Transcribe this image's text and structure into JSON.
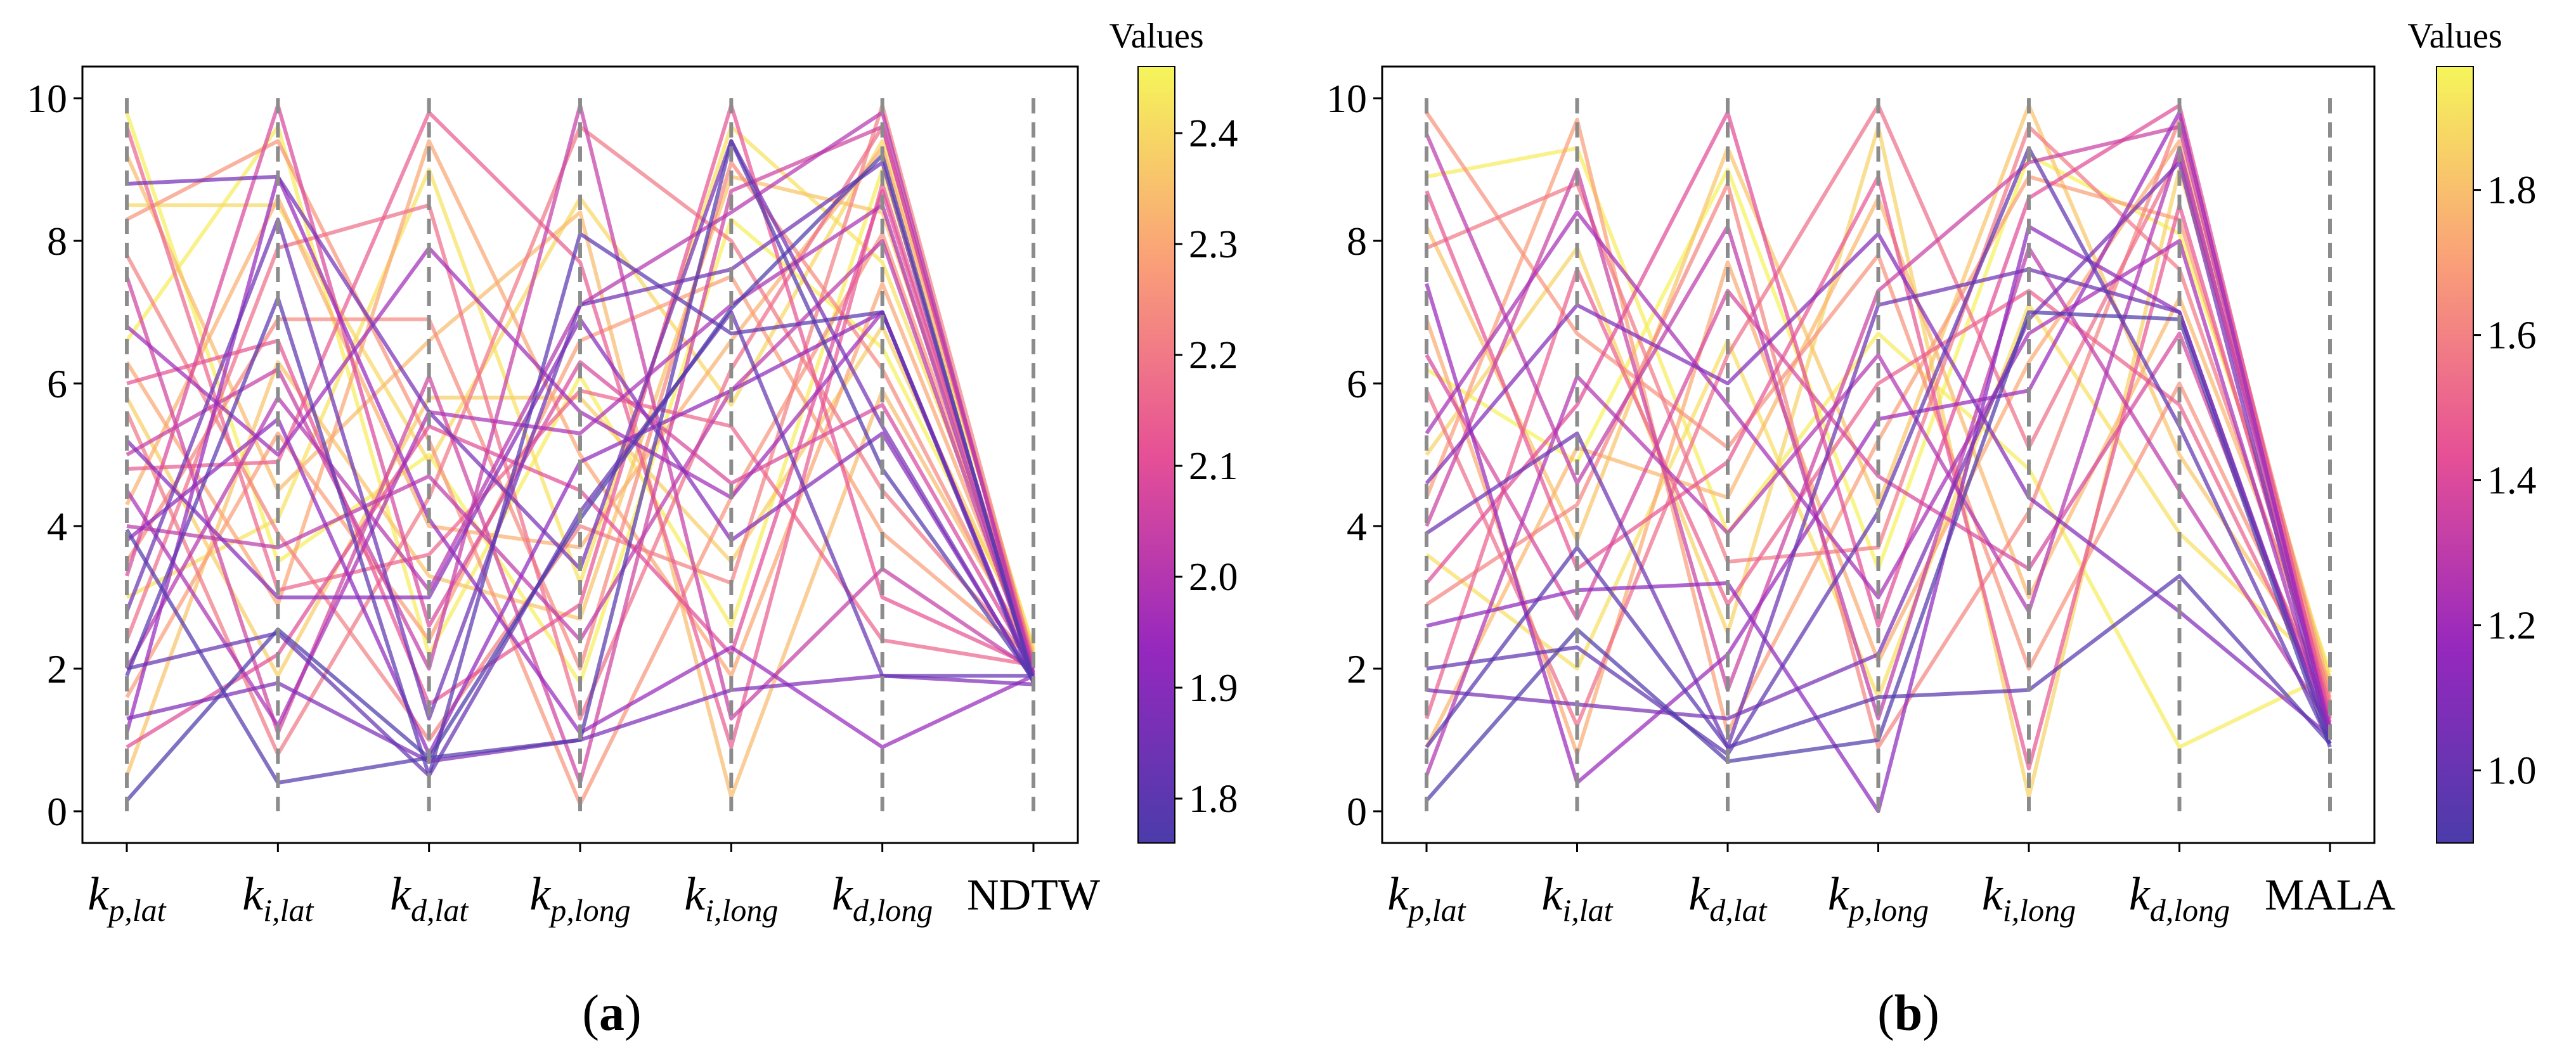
{
  "chart_data": [
    {
      "type": "parallel-coordinates",
      "panel_label": "(a)",
      "axes": [
        {
          "base": "k",
          "sub": "p,lat"
        },
        {
          "base": "k",
          "sub": "i,lat"
        },
        {
          "base": "k",
          "sub": "d,lat"
        },
        {
          "base": "k",
          "sub": "p,long"
        },
        {
          "base": "k",
          "sub": "i,long"
        },
        {
          "base": "k",
          "sub": "d,long"
        },
        {
          "text": "NDTW"
        }
      ],
      "yticks": [
        "0",
        "2",
        "4",
        "6",
        "8",
        "10"
      ],
      "ylim": [
        0,
        10
      ],
      "colorbar": {
        "title": "Values",
        "ticks": [
          "1.8",
          "1.9",
          "2.0",
          "2.1",
          "2.2",
          "2.3",
          "2.4"
        ],
        "range": [
          1.76,
          2.46
        ],
        "colormap": "plasma"
      },
      "series": [
        {
          "values": [
            0.15,
            2.55,
            0.75,
            4.1,
            7.05,
            9.2,
            1.8
          ],
          "color_value": 1.77
        },
        {
          "values": [
            3.95,
            0.4,
            0.75,
            1.0,
            9.4,
            4.8,
            1.85
          ],
          "color_value": 1.78
        },
        {
          "values": [
            1.9,
            7.2,
            0.5,
            8.1,
            6.7,
            7.0,
            1.8
          ],
          "color_value": 1.8
        },
        {
          "values": [
            2.0,
            2.5,
            0.5,
            4.2,
            7.0,
            1.9,
            1.9
          ],
          "color_value": 1.82
        },
        {
          "values": [
            2.8,
            8.3,
            1.3,
            7.1,
            7.6,
            9.1,
            1.85
          ],
          "color_value": 1.84
        },
        {
          "values": [
            8.8,
            8.9,
            5.6,
            3.4,
            9.4,
            5.4,
            1.82
          ],
          "color_value": 1.86
        },
        {
          "values": [
            1.3,
            1.8,
            0.7,
            1.0,
            1.7,
            1.9,
            1.78
          ],
          "color_value": 1.88
        },
        {
          "values": [
            5.2,
            3.0,
            3.0,
            6.9,
            3.8,
            5.3,
            1.85
          ],
          "color_value": 1.9
        },
        {
          "values": [
            3.8,
            5.5,
            0.8,
            4.9,
            5.9,
            7.0,
            1.87
          ],
          "color_value": 1.92
        },
        {
          "values": [
            1.1,
            8.9,
            4.1,
            1.1,
            2.3,
            0.9,
            1.9
          ],
          "color_value": 1.94
        },
        {
          "values": [
            6.8,
            5.0,
            7.9,
            5.6,
            4.4,
            7.0,
            1.85
          ],
          "color_value": 1.96
        },
        {
          "values": [
            4.5,
            1.2,
            5.6,
            5.3,
            7.1,
            8.5,
            1.9
          ],
          "color_value": 1.98
        },
        {
          "values": [
            2.0,
            5.8,
            3.1,
            7.1,
            8.4,
            9.8,
            1.92
          ],
          "color_value": 2.0
        },
        {
          "values": [
            4.0,
            3.7,
            4.7,
            2.4,
            5.9,
            8.0,
            1.95
          ],
          "color_value": 2.02
        },
        {
          "values": [
            5.0,
            6.2,
            2.0,
            9.9,
            1.3,
            3.4,
            1.97
          ],
          "color_value": 2.04
        },
        {
          "values": [
            7.5,
            1.1,
            6.1,
            0.4,
            8.7,
            9.6,
            2.0
          ],
          "color_value": 2.06
        },
        {
          "values": [
            3.3,
            9.9,
            2.6,
            6.3,
            4.6,
            5.7,
            2.0
          ],
          "color_value": 2.08
        },
        {
          "values": [
            0.9,
            2.2,
            5.4,
            4.5,
            2.2,
            8.7,
            2.02
          ],
          "color_value": 2.1
        },
        {
          "values": [
            6.0,
            6.6,
            1.5,
            2.9,
            9.9,
            3.0,
            2.03
          ],
          "color_value": 2.12
        },
        {
          "values": [
            4.8,
            4.9,
            9.8,
            7.7,
            0.9,
            8.8,
            2.05
          ],
          "color_value": 2.14
        },
        {
          "values": [
            9.6,
            3.1,
            3.6,
            5.9,
            5.4,
            2.4,
            2.05
          ],
          "color_value": 2.16
        },
        {
          "values": [
            2.4,
            7.9,
            8.5,
            1.3,
            6.2,
            9.6,
            2.07
          ],
          "color_value": 2.18
        },
        {
          "values": [
            5.6,
            0.8,
            4.4,
            9.6,
            8.0,
            4.5,
            2.08
          ],
          "color_value": 2.2
        },
        {
          "values": [
            7.8,
            3.9,
            1.0,
            4.0,
            3.2,
            9.9,
            2.1
          ],
          "color_value": 2.22
        },
        {
          "values": [
            3.5,
            6.9,
            6.9,
            2.0,
            9.1,
            6.2,
            2.1
          ],
          "color_value": 2.24
        },
        {
          "values": [
            8.3,
            9.4,
            5.2,
            0.1,
            4.4,
            8.1,
            2.12
          ],
          "color_value": 2.26
        },
        {
          "values": [
            1.6,
            5.3,
            2.4,
            6.6,
            7.5,
            3.9,
            2.13
          ],
          "color_value": 2.28
        },
        {
          "values": [
            6.3,
            2.9,
            9.4,
            5.0,
            1.9,
            7.4,
            2.15
          ],
          "color_value": 2.3
        },
        {
          "values": [
            4.3,
            8.6,
            4.0,
            3.7,
            6.6,
            9.3,
            2.17
          ],
          "color_value": 2.32
        },
        {
          "values": [
            9.2,
            4.5,
            6.6,
            8.4,
            0.2,
            5.9,
            2.18
          ],
          "color_value": 2.34
        },
        {
          "values": [
            0.5,
            6.3,
            3.3,
            2.7,
            8.9,
            8.4,
            2.2
          ],
          "color_value": 2.36
        },
        {
          "values": [
            5.8,
            1.9,
            5.8,
            5.8,
            3.5,
            6.8,
            2.22
          ],
          "color_value": 2.38
        },
        {
          "values": [
            8.5,
            8.5,
            4.9,
            8.6,
            5.7,
            9.4,
            2.25
          ],
          "color_value": 2.4
        },
        {
          "values": [
            3.0,
            4.1,
            9.0,
            3.2,
            9.6,
            7.7,
            2.27
          ],
          "color_value": 2.42
        },
        {
          "values": [
            6.6,
            9.6,
            2.2,
            6.1,
            2.6,
            9.0,
            2.3
          ],
          "color_value": 2.44
        },
        {
          "values": [
            9.8,
            3.5,
            5.0,
            1.8,
            8.3,
            6.5,
            2.33
          ],
          "color_value": 2.45
        }
      ]
    },
    {
      "type": "parallel-coordinates",
      "panel_label": "(b)",
      "axes": [
        {
          "base": "k",
          "sub": "p,lat"
        },
        {
          "base": "k",
          "sub": "i,lat"
        },
        {
          "base": "k",
          "sub": "d,lat"
        },
        {
          "base": "k",
          "sub": "p,long"
        },
        {
          "base": "k",
          "sub": "i,long"
        },
        {
          "base": "k",
          "sub": "d,long"
        },
        {
          "text": "MALA"
        }
      ],
      "yticks": [
        "0",
        "2",
        "4",
        "6",
        "8",
        "10"
      ],
      "ylim": [
        0,
        10
      ],
      "colorbar": {
        "title": "Values",
        "ticks": [
          "1.0",
          "1.2",
          "1.4",
          "1.6",
          "1.8"
        ],
        "range": [
          0.9,
          1.97
        ],
        "colormap": "plasma"
      },
      "series": [
        {
          "values": [
            0.15,
            2.55,
            0.7,
            1.0,
            7.0,
            6.9,
            0.9
          ],
          "color_value": 0.92
        },
        {
          "values": [
            0.9,
            3.7,
            0.9,
            1.6,
            1.7,
            3.3,
            0.95
          ],
          "color_value": 0.95
        },
        {
          "values": [
            2.0,
            2.3,
            0.8,
            4.2,
            9.3,
            5.4,
            0.95
          ],
          "color_value": 0.98
        },
        {
          "values": [
            3.9,
            5.3,
            0.9,
            7.1,
            7.6,
            7.0,
            1.0
          ],
          "color_value": 1.02
        },
        {
          "values": [
            1.7,
            1.5,
            1.3,
            2.2,
            6.9,
            9.1,
            1.0
          ],
          "color_value": 1.06
        },
        {
          "values": [
            4.6,
            7.1,
            6.0,
            8.1,
            4.4,
            2.8,
            1.05
          ],
          "color_value": 1.1
        },
        {
          "values": [
            2.6,
            3.1,
            3.2,
            0.0,
            8.2,
            7.0,
            1.05
          ],
          "color_value": 1.14
        },
        {
          "values": [
            7.4,
            0.4,
            2.2,
            5.5,
            5.9,
            9.8,
            1.1
          ],
          "color_value": 1.18
        },
        {
          "values": [
            5.3,
            8.4,
            5.7,
            3.0,
            6.7,
            8.0,
            1.1
          ],
          "color_value": 1.22
        },
        {
          "values": [
            0.5,
            6.1,
            3.9,
            6.4,
            2.8,
            9.3,
            1.15
          ],
          "color_value": 1.26
        },
        {
          "values": [
            9.5,
            4.6,
            8.2,
            1.3,
            7.9,
            4.5,
            1.2
          ],
          "color_value": 1.3
        },
        {
          "values": [
            4.0,
            9.0,
            1.7,
            7.3,
            9.1,
            9.6,
            1.2
          ],
          "color_value": 1.34
        },
        {
          "values": [
            6.4,
            2.7,
            7.3,
            4.7,
            3.4,
            6.7,
            1.25
          ],
          "color_value": 1.38
        },
        {
          "values": [
            3.2,
            5.7,
            9.8,
            2.6,
            8.6,
            9.9,
            1.3
          ],
          "color_value": 1.42
        },
        {
          "values": [
            8.7,
            3.4,
            4.9,
            8.9,
            0.6,
            8.5,
            1.35
          ],
          "color_value": 1.46
        },
        {
          "values": [
            1.3,
            7.6,
            2.9,
            6.0,
            7.3,
            5.7,
            1.4
          ],
          "color_value": 1.5
        },
        {
          "values": [
            5.9,
            1.2,
            6.4,
            9.9,
            5.1,
            9.2,
            1.45
          ],
          "color_value": 1.54
        },
        {
          "values": [
            7.9,
            8.8,
            3.5,
            3.7,
            9.6,
            7.6,
            1.5
          ],
          "color_value": 1.58
        },
        {
          "values": [
            2.9,
            4.3,
            8.8,
            0.9,
            4.2,
            9.7,
            1.55
          ],
          "color_value": 1.62
        },
        {
          "values": [
            9.8,
            6.7,
            5.1,
            7.8,
            2.0,
            6.0,
            1.6
          ],
          "color_value": 1.66
        },
        {
          "values": [
            4.4,
            9.7,
            1.1,
            5.2,
            8.9,
            8.3,
            1.65
          ],
          "color_value": 1.7
        },
        {
          "values": [
            6.9,
            0.8,
            7.7,
            2.1,
            6.3,
            9.4,
            1.7
          ],
          "color_value": 1.74
        },
        {
          "values": [
            0.9,
            5.1,
            4.4,
            8.6,
            3.0,
            7.2,
            1.75
          ],
          "color_value": 1.78
        },
        {
          "values": [
            8.2,
            3.8,
            9.3,
            4.3,
            9.9,
            5.0,
            1.8
          ],
          "color_value": 1.82
        },
        {
          "values": [
            5.0,
            7.9,
            2.5,
            9.6,
            0.2,
            9.0,
            1.85
          ],
          "color_value": 1.86
        },
        {
          "values": [
            3.6,
            2.0,
            6.6,
            1.6,
            7.1,
            3.9,
            1.9
          ],
          "color_value": 1.9
        },
        {
          "values": [
            8.9,
            9.3,
            3.9,
            6.7,
            4.8,
            0.9,
            1.92
          ],
          "color_value": 1.94
        },
        {
          "values": [
            6.2,
            4.9,
            9.0,
            3.4,
            9.2,
            8.1,
            1.95
          ],
          "color_value": 1.96
        }
      ]
    }
  ]
}
